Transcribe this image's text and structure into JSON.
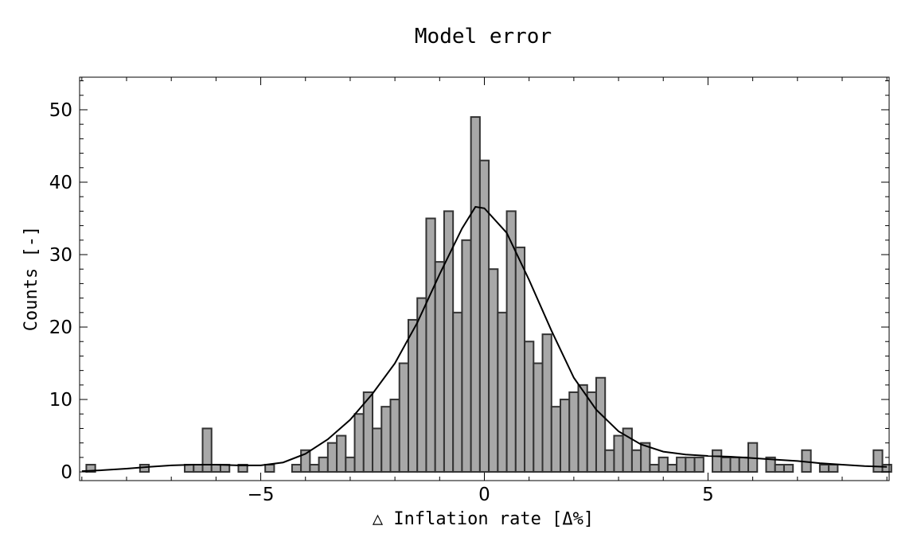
{
  "chart_data": {
    "type": "bar",
    "title": "Model error",
    "xlabel": "△ Inflation rate [Δ%]",
    "ylabel": "Counts [-]",
    "xlim": [
      -9.05,
      9.05
    ],
    "ylim": [
      -1.2,
      54.5
    ],
    "bin_width": 0.2,
    "xticks": [
      -5,
      0,
      5
    ],
    "xtick_labels": [
      "−5",
      "0",
      "5"
    ],
    "yticks": [
      0,
      10,
      20,
      30,
      40,
      50
    ],
    "ytick_labels": [
      "0",
      "10",
      "20",
      "30",
      "40",
      "50"
    ],
    "bins": [
      {
        "x": -8.8,
        "count": 1
      },
      {
        "x": -7.6,
        "count": 1
      },
      {
        "x": -6.6,
        "count": 1
      },
      {
        "x": -6.4,
        "count": 1
      },
      {
        "x": -6.2,
        "count": 6
      },
      {
        "x": -6.0,
        "count": 1
      },
      {
        "x": -5.8,
        "count": 1
      },
      {
        "x": -5.4,
        "count": 1
      },
      {
        "x": -4.8,
        "count": 1
      },
      {
        "x": -4.2,
        "count": 1
      },
      {
        "x": -4.0,
        "count": 3
      },
      {
        "x": -3.8,
        "count": 1
      },
      {
        "x": -3.6,
        "count": 2
      },
      {
        "x": -3.4,
        "count": 4
      },
      {
        "x": -3.2,
        "count": 5
      },
      {
        "x": -3.0,
        "count": 2
      },
      {
        "x": -2.8,
        "count": 8
      },
      {
        "x": -2.6,
        "count": 11
      },
      {
        "x": -2.4,
        "count": 6
      },
      {
        "x": -2.2,
        "count": 9
      },
      {
        "x": -2.0,
        "count": 10
      },
      {
        "x": -1.8,
        "count": 15
      },
      {
        "x": -1.6,
        "count": 21
      },
      {
        "x": -1.4,
        "count": 24
      },
      {
        "x": -1.2,
        "count": 35
      },
      {
        "x": -1.0,
        "count": 29
      },
      {
        "x": -0.8,
        "count": 36
      },
      {
        "x": -0.6,
        "count": 22
      },
      {
        "x": -0.4,
        "count": 32
      },
      {
        "x": -0.2,
        "count": 49
      },
      {
        "x": 0.0,
        "count": 43
      },
      {
        "x": 0.2,
        "count": 28
      },
      {
        "x": 0.4,
        "count": 22
      },
      {
        "x": 0.6,
        "count": 36
      },
      {
        "x": 0.8,
        "count": 31
      },
      {
        "x": 1.0,
        "count": 18
      },
      {
        "x": 1.2,
        "count": 15
      },
      {
        "x": 1.4,
        "count": 19
      },
      {
        "x": 1.6,
        "count": 9
      },
      {
        "x": 1.8,
        "count": 10
      },
      {
        "x": 2.0,
        "count": 11
      },
      {
        "x": 2.2,
        "count": 12
      },
      {
        "x": 2.4,
        "count": 11
      },
      {
        "x": 2.6,
        "count": 13
      },
      {
        "x": 2.8,
        "count": 3
      },
      {
        "x": 3.0,
        "count": 5
      },
      {
        "x": 3.2,
        "count": 6
      },
      {
        "x": 3.4,
        "count": 3
      },
      {
        "x": 3.6,
        "count": 4
      },
      {
        "x": 3.8,
        "count": 1
      },
      {
        "x": 4.0,
        "count": 2
      },
      {
        "x": 4.2,
        "count": 1
      },
      {
        "x": 4.4,
        "count": 2
      },
      {
        "x": 4.6,
        "count": 2
      },
      {
        "x": 4.8,
        "count": 2
      },
      {
        "x": 5.2,
        "count": 3
      },
      {
        "x": 5.4,
        "count": 2
      },
      {
        "x": 5.6,
        "count": 2
      },
      {
        "x": 5.8,
        "count": 2
      },
      {
        "x": 6.0,
        "count": 4
      },
      {
        "x": 6.4,
        "count": 2
      },
      {
        "x": 6.6,
        "count": 1
      },
      {
        "x": 6.8,
        "count": 1
      },
      {
        "x": 7.2,
        "count": 3
      },
      {
        "x": 7.6,
        "count": 1
      },
      {
        "x": 7.8,
        "count": 1
      },
      {
        "x": 8.8,
        "count": 3
      },
      {
        "x": 9.0,
        "count": 1
      }
    ],
    "fit_curve": {
      "type": "line",
      "points": [
        [
          -9.0,
          0.1
        ],
        [
          -8.5,
          0.25
        ],
        [
          -8.0,
          0.45
        ],
        [
          -7.5,
          0.7
        ],
        [
          -7.0,
          0.9
        ],
        [
          -6.5,
          1.0
        ],
        [
          -6.0,
          1.0
        ],
        [
          -5.5,
          0.9
        ],
        [
          -5.0,
          0.9
        ],
        [
          -4.5,
          1.3
        ],
        [
          -4.0,
          2.5
        ],
        [
          -3.5,
          4.5
        ],
        [
          -3.0,
          7.2
        ],
        [
          -2.5,
          10.8
        ],
        [
          -2.0,
          15.0
        ],
        [
          -1.5,
          20.6
        ],
        [
          -1.0,
          27.3
        ],
        [
          -0.5,
          33.6
        ],
        [
          -0.2,
          36.6
        ],
        [
          0.0,
          36.4
        ],
        [
          0.5,
          33.0
        ],
        [
          1.0,
          26.5
        ],
        [
          1.5,
          19.5
        ],
        [
          2.0,
          13.0
        ],
        [
          2.5,
          8.6
        ],
        [
          3.0,
          5.6
        ],
        [
          3.5,
          3.8
        ],
        [
          4.0,
          2.8
        ],
        [
          4.5,
          2.4
        ],
        [
          5.0,
          2.2
        ],
        [
          5.5,
          2.1
        ],
        [
          6.0,
          1.9
        ],
        [
          6.5,
          1.7
        ],
        [
          7.0,
          1.5
        ],
        [
          7.5,
          1.2
        ],
        [
          8.0,
          1.0
        ],
        [
          8.5,
          0.8
        ],
        [
          9.0,
          0.7
        ]
      ]
    }
  }
}
